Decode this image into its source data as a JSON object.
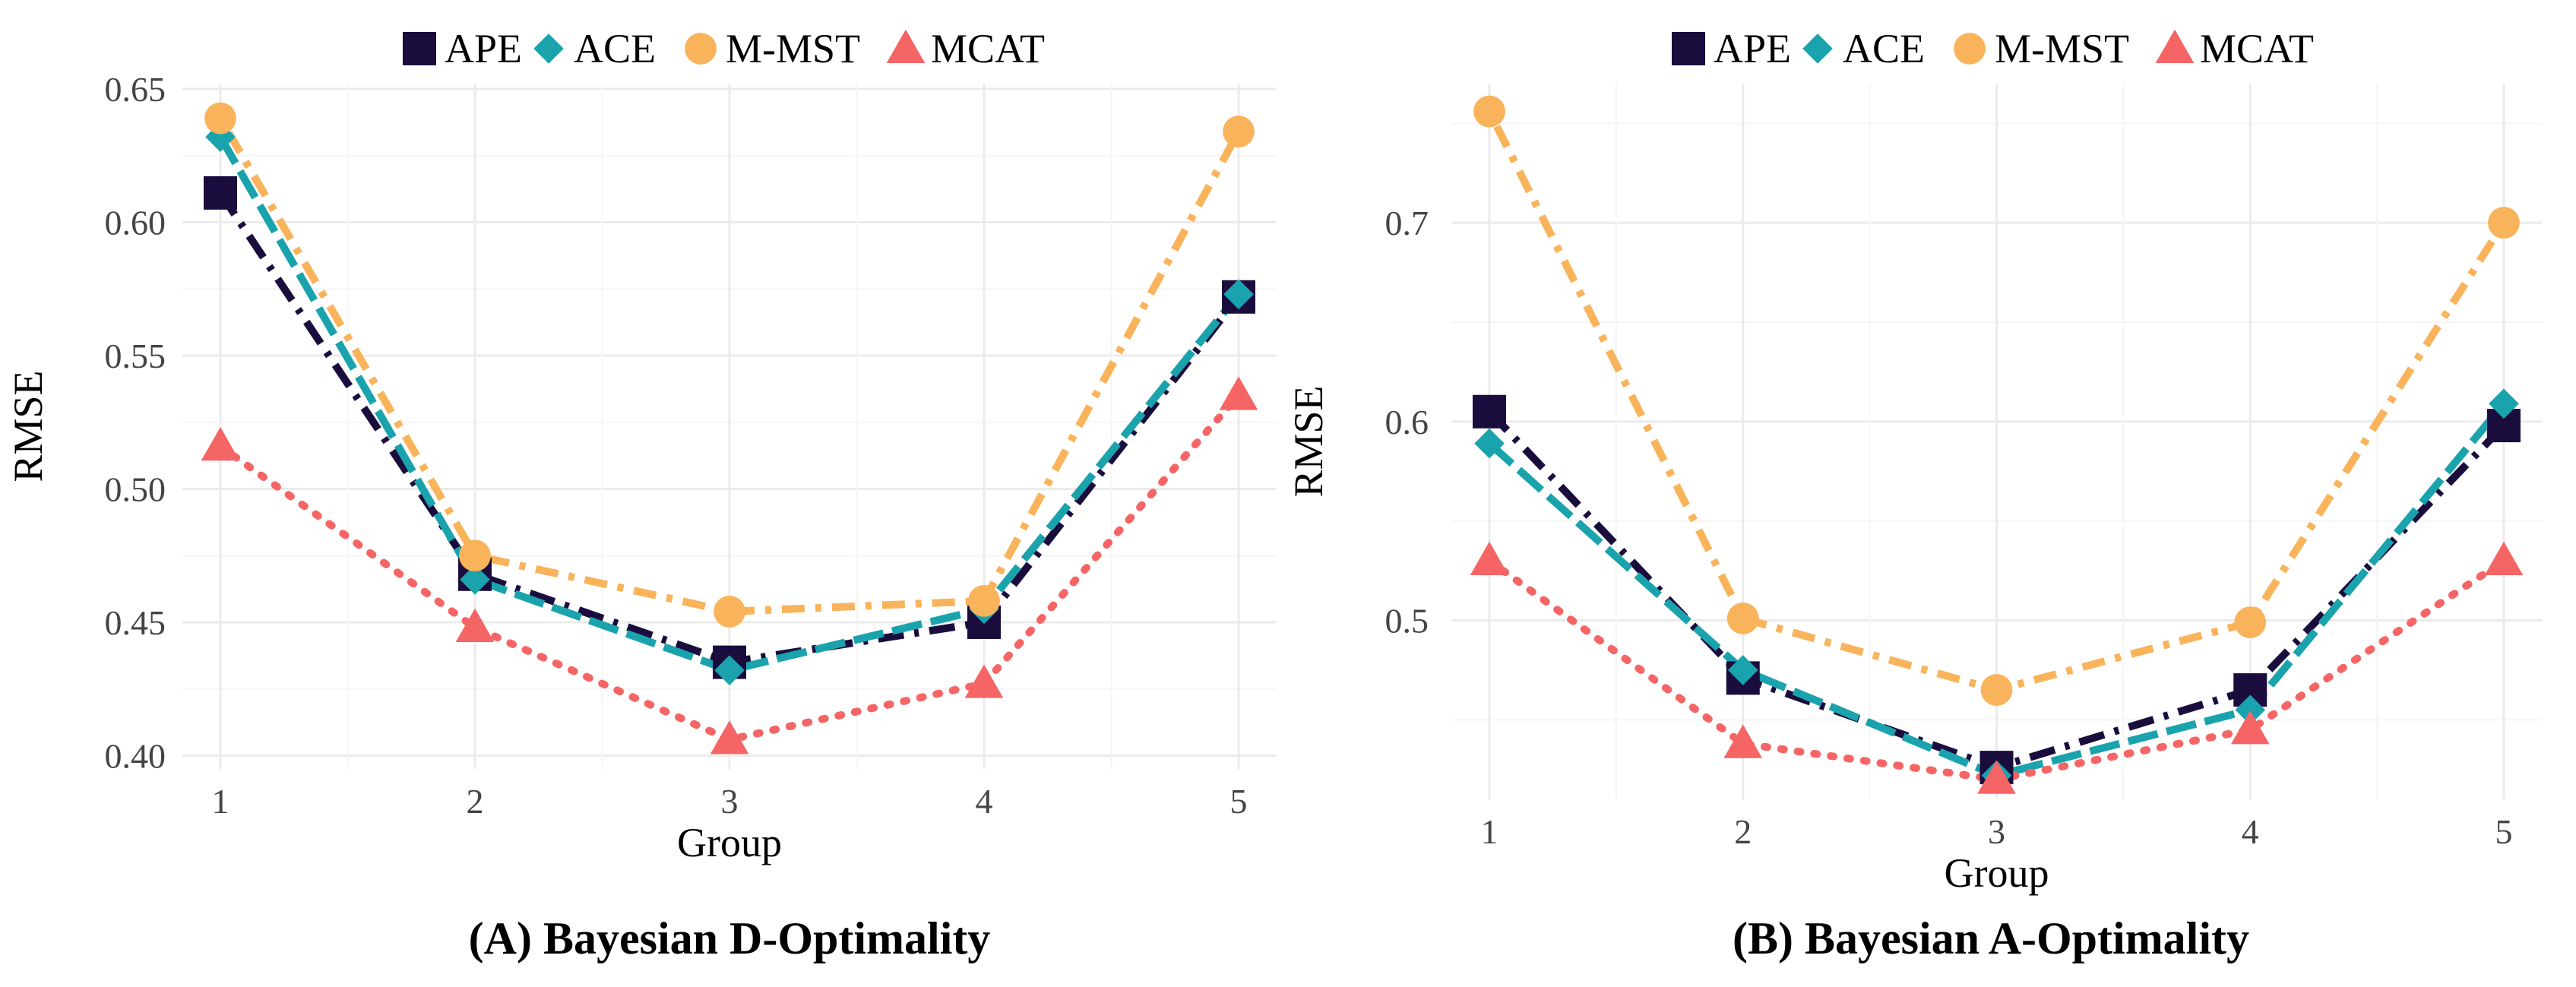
{
  "legend": [
    {
      "name": "APE",
      "color": "#1a0d3d",
      "marker": "square",
      "dash": "dashdot"
    },
    {
      "name": "ACE",
      "color": "#1aa3ad",
      "marker": "diamond",
      "dash": "longdash"
    },
    {
      "name": "M-MST",
      "color": "#f9b35a",
      "marker": "circle",
      "dash": "dotdash"
    },
    {
      "name": "MCAT",
      "color": "#f56565",
      "marker": "triangle",
      "dash": "dotted"
    }
  ],
  "chart_data": [
    {
      "type": "line",
      "caption": "(A) Bayesian D-Optimality",
      "xlabel": "Group",
      "ylabel": "RMSE",
      "x": [
        1,
        2,
        3,
        4,
        5
      ],
      "xticks": [
        "1",
        "2",
        "3",
        "4",
        "5"
      ],
      "ylim": [
        0.395,
        0.652
      ],
      "yticks": [
        "0.40",
        "0.45",
        "0.50",
        "0.55",
        "0.60",
        "0.65"
      ],
      "ytick_values": [
        0.4,
        0.45,
        0.5,
        0.55,
        0.6,
        0.65
      ],
      "grid": true,
      "series": [
        {
          "name": "APE",
          "values": [
            0.611,
            0.468,
            0.435,
            0.45,
            0.572
          ]
        },
        {
          "name": "ACE",
          "values": [
            0.632,
            0.466,
            0.432,
            0.455,
            0.573
          ]
        },
        {
          "name": "M-MST",
          "values": [
            0.639,
            0.475,
            0.454,
            0.458,
            0.634
          ]
        },
        {
          "name": "MCAT",
          "values": [
            0.516,
            0.448,
            0.406,
            0.427,
            0.535
          ]
        }
      ]
    },
    {
      "type": "line",
      "caption": "(B) Bayesian A-Optimality",
      "xlabel": "Group",
      "ylabel": "RMSE",
      "x": [
        1,
        2,
        3,
        4,
        5
      ],
      "xticks": [
        "1",
        "2",
        "3",
        "4",
        "5"
      ],
      "ylim": [
        0.41,
        0.77
      ],
      "yticks": [
        "0.5",
        "0.6",
        "0.7"
      ],
      "ytick_values": [
        0.5,
        0.6,
        0.7
      ],
      "grid": true,
      "series": [
        {
          "name": "APE",
          "values": [
            0.605,
            0.471,
            0.426,
            0.465,
            0.598
          ]
        },
        {
          "name": "ACE",
          "values": [
            0.589,
            0.475,
            0.422,
            0.455,
            0.609
          ]
        },
        {
          "name": "M-MST",
          "values": [
            0.756,
            0.501,
            0.465,
            0.499,
            0.7
          ]
        },
        {
          "name": "MCAT",
          "values": [
            0.53,
            0.438,
            0.42,
            0.445,
            0.53
          ]
        }
      ]
    }
  ]
}
